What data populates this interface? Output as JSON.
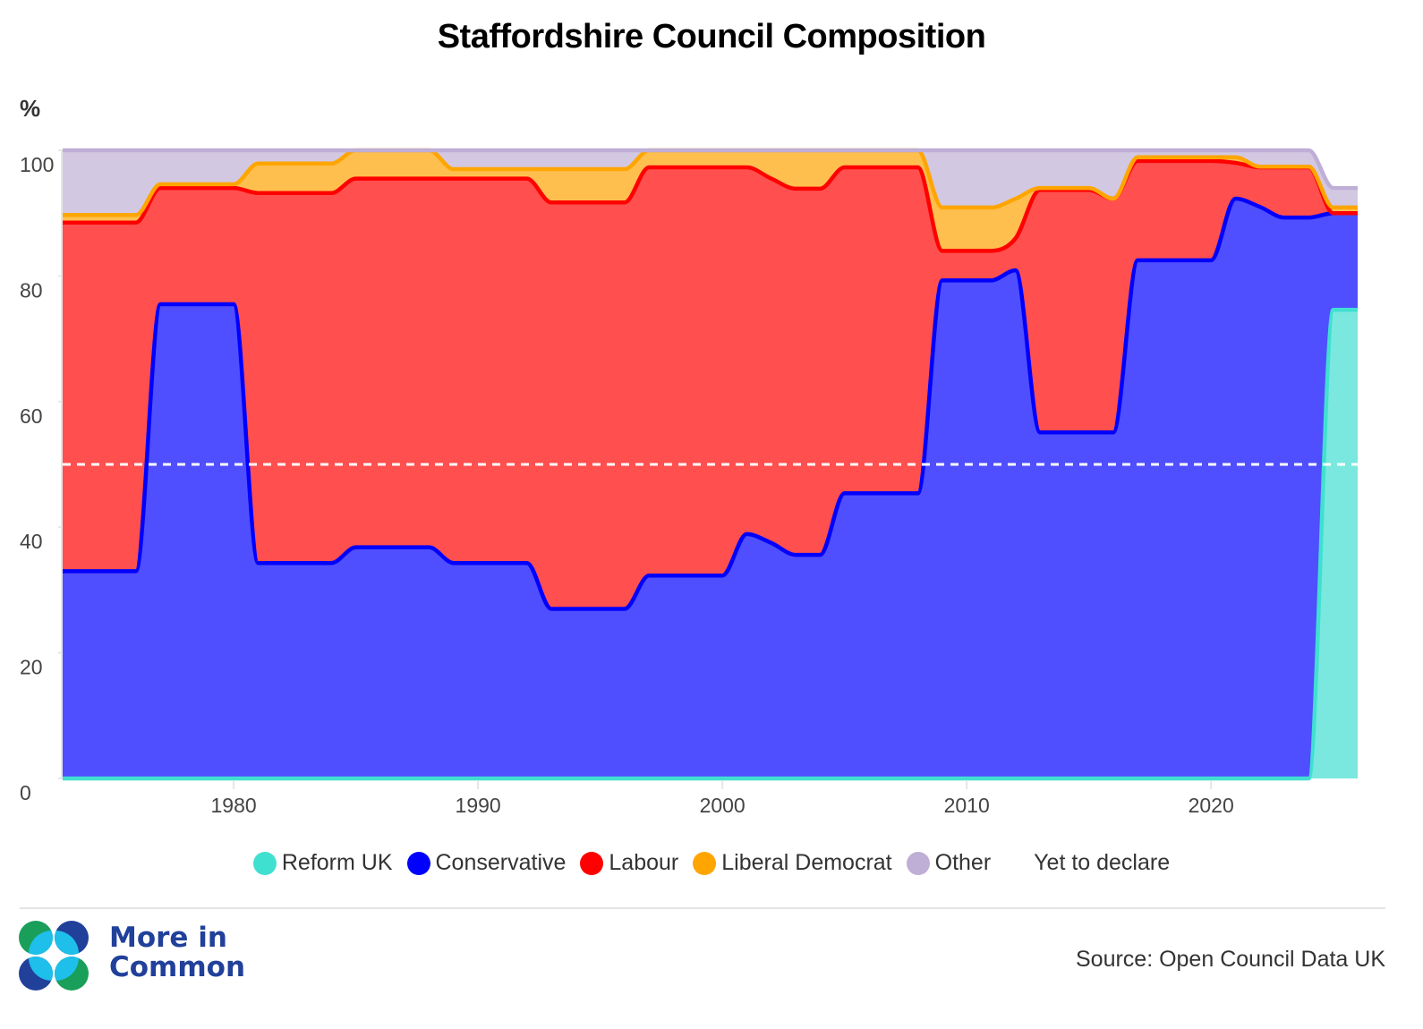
{
  "chart_data": {
    "type": "area",
    "stacked": true,
    "title": "Staffordshire Council Composition",
    "ylabel": "%",
    "xlabel": "",
    "ylim": [
      0,
      100
    ],
    "xlim": [
      1973,
      2026
    ],
    "yticks": [
      0,
      20,
      40,
      60,
      80,
      100
    ],
    "xticks": [
      1980,
      1990,
      2000,
      2010,
      2020
    ],
    "grid": "horizontal",
    "reference_line": {
      "value": 50,
      "style": "dashed",
      "color": "#ffffff"
    },
    "legend_position": "bottom",
    "x": [
      1973,
      1974,
      1975,
      1976,
      1977,
      1978,
      1979,
      1980,
      1981,
      1982,
      1983,
      1984,
      1985,
      1986,
      1987,
      1988,
      1989,
      1990,
      1991,
      1992,
      1993,
      1994,
      1995,
      1996,
      1997,
      1998,
      1999,
      2000,
      2001,
      2002,
      2003,
      2004,
      2005,
      2006,
      2007,
      2008,
      2009,
      2010,
      2011,
      2012,
      2013,
      2014,
      2015,
      2016,
      2017,
      2018,
      2019,
      2020,
      2021,
      2022,
      2023,
      2024,
      2025,
      2026
    ],
    "series": [
      {
        "name": "Reform UK",
        "color": "#40e0d0",
        "fill": "#7ae8df",
        "values": [
          0,
          0,
          0,
          0,
          0,
          0,
          0,
          0,
          0,
          0,
          0,
          0,
          0,
          0,
          0,
          0,
          0,
          0,
          0,
          0,
          0,
          0,
          0,
          0,
          0,
          0,
          0,
          0,
          0,
          0,
          0,
          0,
          0,
          0,
          0,
          0,
          0,
          0,
          0,
          0,
          0,
          0,
          0,
          0,
          0,
          0,
          0,
          0,
          0,
          0,
          0,
          0,
          74.6,
          74.6
        ]
      },
      {
        "name": "Conservative",
        "color": "#0000ff",
        "fill": "#4f4fff",
        "values": [
          33,
          33,
          33,
          33,
          75.5,
          75.5,
          75.5,
          75.5,
          34.3,
          34.3,
          34.3,
          34.3,
          36.8,
          36.8,
          36.8,
          36.8,
          34.3,
          34.3,
          34.3,
          34.3,
          27,
          27,
          27,
          27,
          32.3,
          32.3,
          32.3,
          32.3,
          38.9,
          37.5,
          35.6,
          35.6,
          45.4,
          45.4,
          45.4,
          45.4,
          79.3,
          79.3,
          79.3,
          80.9,
          55.1,
          55.1,
          55.1,
          55.1,
          82.5,
          82.5,
          82.5,
          82.5,
          92.3,
          91,
          89.3,
          89.3,
          15.4,
          15.4
        ]
      },
      {
        "name": "Labour",
        "color": "#ff0000",
        "fill": "#ff4f4f",
        "values": [
          55.5,
          55.5,
          55.5,
          55.5,
          18.5,
          18.5,
          18.5,
          18.5,
          58.9,
          58.9,
          58.9,
          58.9,
          58.7,
          58.7,
          58.7,
          58.7,
          61.2,
          61.2,
          61.2,
          61.2,
          64.7,
          64.7,
          64.7,
          64.7,
          65,
          65,
          65,
          65,
          58.4,
          58,
          58.3,
          58.3,
          51.9,
          51.9,
          51.9,
          51.9,
          4.7,
          4.7,
          4.7,
          5.1,
          38.6,
          38.6,
          38.6,
          37.2,
          15.8,
          15.8,
          15.8,
          15.8,
          5.7,
          6.3,
          8,
          8,
          0,
          0
        ]
      },
      {
        "name": "Liberal Democrat",
        "color": "#ffa500",
        "fill": "#ffbf4f",
        "values": [
          1.2,
          1.2,
          1.2,
          1.2,
          0.6,
          0.6,
          0.6,
          0.6,
          4.7,
          4.7,
          4.7,
          4.7,
          4.5,
          4.5,
          4.5,
          4.5,
          1.5,
          1.5,
          1.5,
          1.5,
          5.3,
          5.3,
          5.3,
          5.3,
          2.7,
          2.7,
          2.7,
          2.7,
          2.7,
          4.5,
          6.1,
          6.1,
          2.7,
          2.7,
          2.7,
          2.7,
          6.9,
          6.9,
          6.9,
          6.3,
          0.3,
          0.3,
          0.3,
          0,
          0.6,
          0.6,
          0.6,
          0.6,
          0.9,
          0.1,
          0.1,
          0.1,
          0.9,
          0.9
        ]
      },
      {
        "name": "Other",
        "color": "#bfaed6",
        "fill": "#d3c8e2",
        "values": [
          10.3,
          10.3,
          10.3,
          10.3,
          5.4,
          5.4,
          5.4,
          5.4,
          2.1,
          2.1,
          2.1,
          2.1,
          0,
          0,
          0,
          0,
          3,
          3,
          3,
          3,
          3,
          3,
          3,
          3,
          0,
          0,
          0,
          0,
          0,
          0,
          0,
          0,
          0,
          0,
          0,
          0,
          9.1,
          9.1,
          9.1,
          7.7,
          6,
          6,
          6,
          7.7,
          1.1,
          1.1,
          1.1,
          1.1,
          1.1,
          2.6,
          2.6,
          2.6,
          3.1,
          3.1
        ]
      },
      {
        "name": "Yet to declare",
        "color": "#ffffff",
        "fill": "#ffffff",
        "values": [
          0,
          0,
          0,
          0,
          0,
          0,
          0,
          0,
          0,
          0,
          0,
          0,
          0,
          0,
          0,
          0,
          0,
          0,
          0,
          0,
          0,
          0,
          0,
          0,
          0,
          0,
          0,
          0,
          0,
          0,
          0,
          0,
          0,
          0,
          0,
          0,
          0,
          0,
          0,
          0,
          0,
          0,
          0,
          0,
          0,
          0,
          0,
          0,
          0,
          0,
          0,
          0,
          6,
          6
        ]
      }
    ]
  },
  "header": {
    "title": "Staffordshire Council Composition",
    "y_unit": "%"
  },
  "legend": [
    {
      "label": "Reform UK",
      "color": "#40e0d0"
    },
    {
      "label": "Conservative",
      "color": "#0000ff"
    },
    {
      "label": "Labour",
      "color": "#ff0000"
    },
    {
      "label": "Liberal Democrat",
      "color": "#ffa500"
    },
    {
      "label": "Other",
      "color": "#bfaed6"
    },
    {
      "label": "Yet to declare",
      "color": "#ffffff"
    }
  ],
  "footer": {
    "logo_text_line1": "More in",
    "logo_text_line2": "Common",
    "source": "Source: Open Council Data UK"
  }
}
